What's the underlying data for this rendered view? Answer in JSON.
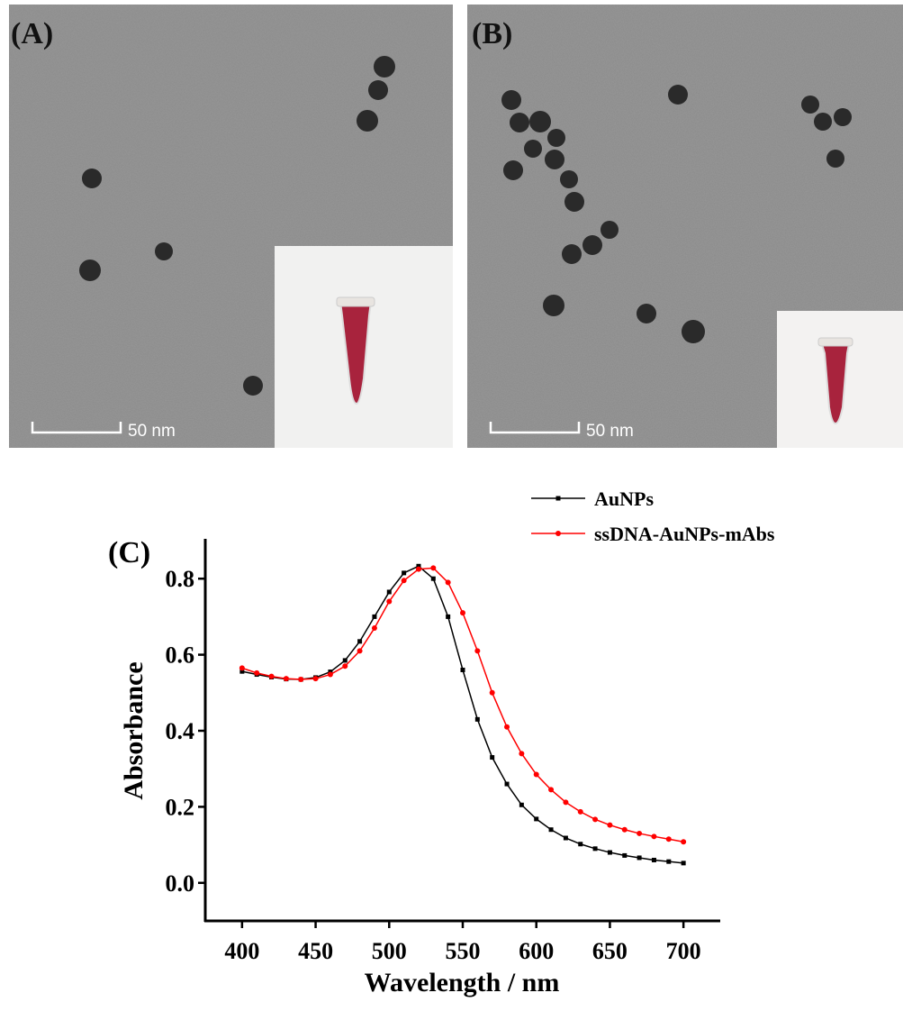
{
  "panels": [
    {
      "label": "(A)",
      "scale_bar": "50 nm"
    },
    {
      "label": "(B)",
      "scale_bar": "50 nm"
    }
  ],
  "chart_data": {
    "type": "line",
    "panel_label": "(C)",
    "x_label": "Wavelength / nm",
    "y_label": "Absorbance",
    "x": [
      400,
      410,
      420,
      430,
      440,
      450,
      460,
      470,
      480,
      490,
      500,
      510,
      520,
      530,
      540,
      550,
      560,
      570,
      580,
      590,
      600,
      610,
      620,
      630,
      640,
      650,
      660,
      670,
      680,
      690,
      700
    ],
    "series": [
      {
        "name": "AuNPs",
        "color": "#000000",
        "marker": "square",
        "values": [
          0.556,
          0.548,
          0.541,
          0.536,
          0.535,
          0.54,
          0.555,
          0.585,
          0.635,
          0.7,
          0.765,
          0.815,
          0.833,
          0.8,
          0.7,
          0.56,
          0.43,
          0.33,
          0.26,
          0.205,
          0.168,
          0.14,
          0.118,
          0.102,
          0.09,
          0.08,
          0.072,
          0.066,
          0.06,
          0.056,
          0.052
        ]
      },
      {
        "name": "ssDNA-AuNPs-mAbs",
        "color": "#ff0000",
        "marker": "circle",
        "values": [
          0.565,
          0.552,
          0.543,
          0.537,
          0.535,
          0.537,
          0.548,
          0.57,
          0.61,
          0.67,
          0.74,
          0.795,
          0.825,
          0.828,
          0.79,
          0.71,
          0.61,
          0.5,
          0.41,
          0.34,
          0.285,
          0.245,
          0.212,
          0.187,
          0.167,
          0.152,
          0.14,
          0.13,
          0.122,
          0.115,
          0.108
        ]
      }
    ],
    "xlim": [
      375,
      725
    ],
    "xticks": [
      400,
      450,
      500,
      550,
      600,
      650,
      700
    ],
    "ylim": [
      -0.1,
      0.9
    ],
    "yticks": [
      {
        "value": 0,
        "label": "0.0"
      },
      0.2,
      0.4,
      0.6,
      0.8
    ],
    "grid": false,
    "legend": "top-right"
  }
}
